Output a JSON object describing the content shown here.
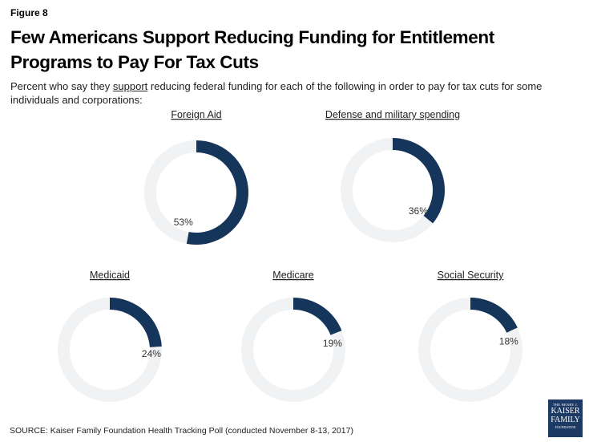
{
  "figure_label": "Figure 8",
  "title": "Few Americans Support Reducing Funding for Entitlement Programs to Pay For Tax Cuts",
  "subtitle_before": "Percent who say they ",
  "subtitle_underlined": "support",
  "subtitle_after": " reducing federal funding for each of the following in order to pay for tax cuts for some individuals and corporations:",
  "source": "SOURCE: Kaiser Family Foundation Health Tracking Poll (conducted November 8-13, 2017)",
  "logo": {
    "line1": "THE HENRY J.",
    "line2": "KAISER",
    "line3": "FAMILY",
    "line4": "FOUNDATION"
  },
  "colors": {
    "fill": "#15355b",
    "track": "#f1f2f4",
    "label": "#333333"
  },
  "chart_data": {
    "type": "pie",
    "subtype": "donut",
    "unit": "%",
    "series": [
      {
        "name": "Foreign Aid",
        "value": 53,
        "label": "53%"
      },
      {
        "name": "Defense and military spending",
        "value": 36,
        "label": "36%"
      },
      {
        "name": "Medicaid",
        "value": 24,
        "label": "24%"
      },
      {
        "name": "Medicare",
        "value": 19,
        "label": "19%"
      },
      {
        "name": "Social Security",
        "value": 18,
        "label": "18%"
      }
    ]
  }
}
